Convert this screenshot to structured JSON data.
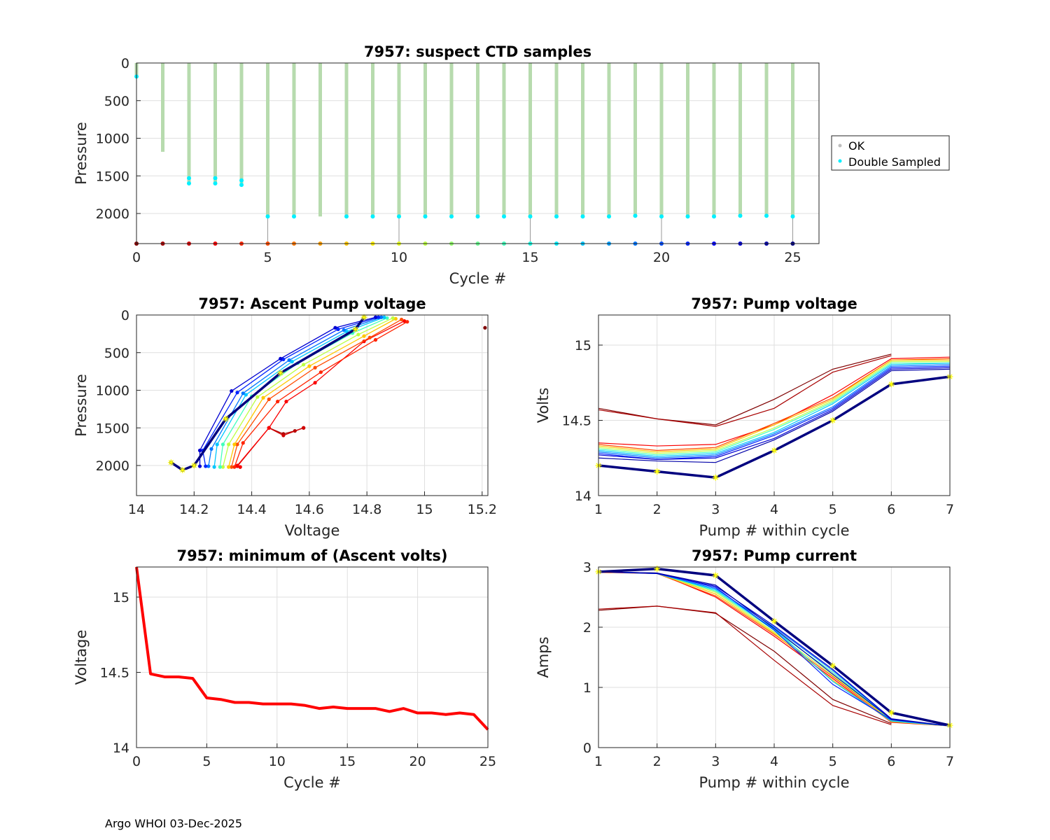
{
  "footer": "Argo WHOI 03-Dec-2025",
  "colors": {
    "ok": "#b7dbae",
    "double_sampled": "#00f0ff",
    "cycle_scale": [
      "#00007f",
      "#0000ff",
      "#007fff",
      "#00ffff",
      "#7fff7f",
      "#ffff00",
      "#ff7f00",
      "#ff0000",
      "#7f0000"
    ],
    "min_voltage": "#ff0000"
  },
  "chart_data": [
    {
      "id": "ctd",
      "type": "scatter",
      "title": "7957: suspect CTD samples",
      "xlabel": "Cycle #",
      "ylabel": "Pressure",
      "xlim": [
        0,
        26
      ],
      "ylim": [
        2400,
        0
      ],
      "xticks": [
        0,
        5,
        10,
        15,
        20,
        25
      ],
      "yticks": [
        0,
        500,
        1000,
        1500,
        2000
      ],
      "legend": {
        "location": "east-outside",
        "entries": [
          "OK",
          "Double Sampled"
        ]
      },
      "cycles": [
        0,
        1,
        2,
        3,
        4,
        5,
        6,
        7,
        8,
        9,
        10,
        11,
        12,
        13,
        14,
        15,
        16,
        17,
        18,
        19,
        20,
        21,
        22,
        23,
        24,
        25
      ],
      "max_pressure": [
        180,
        1180,
        1600,
        1600,
        1620,
        2040,
        2040,
        2040,
        2040,
        2040,
        2040,
        2040,
        2040,
        2040,
        2040,
        2040,
        2040,
        2040,
        2040,
        2030,
        2040,
        2040,
        2040,
        2030,
        2030,
        2040
      ],
      "double_sampled": [
        [
          0,
          180
        ],
        [
          2,
          1530
        ],
        [
          2,
          1600
        ],
        [
          3,
          1530
        ],
        [
          3,
          1600
        ],
        [
          4,
          1560
        ],
        [
          4,
          1620
        ],
        [
          5,
          2040
        ],
        [
          6,
          2040
        ],
        [
          8,
          2040
        ],
        [
          9,
          2040
        ],
        [
          10,
          2040
        ],
        [
          11,
          2040
        ],
        [
          12,
          2040
        ],
        [
          13,
          2040
        ],
        [
          14,
          2040
        ],
        [
          15,
          2040
        ],
        [
          16,
          2040
        ],
        [
          17,
          2040
        ],
        [
          18,
          2040
        ],
        [
          19,
          2030
        ],
        [
          20,
          2040
        ],
        [
          21,
          2040
        ],
        [
          22,
          2040
        ],
        [
          23,
          2030
        ],
        [
          24,
          2030
        ],
        [
          25,
          2040
        ]
      ],
      "stems": [
        5,
        10,
        15,
        20,
        25
      ],
      "stem_top": 2040,
      "baseline": 2400
    },
    {
      "id": "ascent",
      "type": "line",
      "title": "7957: Ascent Pump voltage",
      "xlabel": "Voltage",
      "ylabel": "Pressure",
      "xlim": [
        14,
        15.22
      ],
      "ylim": [
        2400,
        0
      ],
      "xticks": [
        14,
        14.2,
        14.4,
        14.6,
        14.8,
        15,
        15.2
      ],
      "yticks": [
        0,
        500,
        1000,
        1500,
        2000
      ],
      "series": [
        {
          "cycle": 0,
          "points": [
            [
              15.21,
              170
            ]
          ]
        },
        {
          "cycle": 1,
          "points": [
            [
              14.46,
              1500
            ],
            [
              14.51,
              1580
            ],
            [
              14.55,
              1540
            ],
            [
              14.58,
              1500
            ]
          ]
        },
        {
          "cycle": 2,
          "points": [
            [
              14.36,
              2020
            ],
            [
              14.35,
              2010
            ],
            [
              14.46,
              1500
            ],
            [
              14.51,
              1600
            ],
            [
              14.58,
              1500
            ]
          ]
        },
        {
          "cycle": 3,
          "points": [
            [
              14.36,
              2020
            ],
            [
              14.35,
              2000
            ],
            [
              14.46,
              1500
            ],
            [
              14.52,
              1150
            ],
            [
              14.62,
              900
            ],
            [
              14.79,
              350
            ],
            [
              14.93,
              80
            ]
          ]
        },
        {
          "cycle": 4,
          "points": [
            [
              14.34,
              2020
            ],
            [
              14.37,
              1700
            ],
            [
              14.49,
              1150
            ],
            [
              14.64,
              760
            ],
            [
              14.83,
              330
            ],
            [
              14.94,
              90
            ]
          ]
        },
        {
          "cycle": 5,
          "points": [
            [
              14.33,
              2020
            ],
            [
              14.35,
              1720
            ],
            [
              14.46,
              1120
            ],
            [
              14.62,
              700
            ],
            [
              14.81,
              300
            ],
            [
              14.92,
              60
            ]
          ]
        },
        {
          "cycle": 8,
          "points": [
            [
              14.32,
              2020
            ],
            [
              14.34,
              1720
            ],
            [
              14.44,
              1100
            ],
            [
              14.6,
              680
            ],
            [
              14.79,
              280
            ],
            [
              14.9,
              50
            ]
          ]
        },
        {
          "cycle": 11,
          "points": [
            [
              14.3,
              2020
            ],
            [
              14.32,
              1720
            ],
            [
              14.42,
              1090
            ],
            [
              14.58,
              660
            ],
            [
              14.77,
              260
            ],
            [
              14.89,
              40
            ]
          ]
        },
        {
          "cycle": 14,
          "points": [
            [
              14.29,
              2020
            ],
            [
              14.3,
              1720
            ],
            [
              14.4,
              1080
            ],
            [
              14.56,
              640
            ],
            [
              14.75,
              240
            ],
            [
              14.87,
              40
            ]
          ]
        },
        {
          "cycle": 17,
          "points": [
            [
              14.27,
              2020
            ],
            [
              14.28,
              1720
            ],
            [
              14.38,
              1060
            ],
            [
              14.54,
              620
            ],
            [
              14.73,
              220
            ],
            [
              14.86,
              30
            ]
          ]
        },
        {
          "cycle": 19,
          "points": [
            [
              14.25,
              2010
            ],
            [
              14.26,
              1780
            ],
            [
              14.37,
              1040
            ],
            [
              14.53,
              600
            ],
            [
              14.72,
              200
            ],
            [
              14.85,
              30
            ]
          ]
        },
        {
          "cycle": 21,
          "points": [
            [
              14.24,
              2010
            ],
            [
              14.23,
              1800
            ],
            [
              14.35,
              1030
            ],
            [
              14.51,
              590
            ],
            [
              14.7,
              190
            ],
            [
              14.84,
              30
            ]
          ]
        },
        {
          "cycle": 23,
          "points": [
            [
              14.22,
              2010
            ],
            [
              14.22,
              1800
            ],
            [
              14.33,
              1010
            ],
            [
              14.5,
              580
            ],
            [
              14.69,
              170
            ],
            [
              14.83,
              30
            ]
          ]
        },
        {
          "cycle": 25,
          "points": [
            [
              14.12,
              1960
            ],
            [
              14.16,
              2060
            ],
            [
              14.2,
              2000
            ],
            [
              14.31,
              1380
            ],
            [
              14.5,
              770
            ],
            [
              14.76,
              190
            ],
            [
              14.79,
              30
            ]
          ]
        }
      ]
    },
    {
      "id": "pump_voltage",
      "type": "line",
      "title": "7957: Pump voltage",
      "xlabel": "Pump # within cycle",
      "ylabel": "Volts",
      "xlim": [
        1,
        7
      ],
      "ylim": [
        14,
        15.2
      ],
      "xticks": [
        1,
        2,
        3,
        4,
        5,
        6,
        7
      ],
      "yticks": [
        14,
        14.5,
        15
      ],
      "series": [
        {
          "cycle": 0,
          "values": [
            14.58,
            14.51,
            14.47,
            14.64,
            14.84,
            14.94,
            null
          ]
        },
        {
          "cycle": 1,
          "values": [
            14.57,
            14.51,
            14.46,
            14.58,
            14.82,
            14.93,
            null
          ]
        },
        {
          "cycle": 3,
          "values": [
            14.35,
            14.33,
            14.34,
            14.47,
            14.67,
            14.91,
            14.92
          ]
        },
        {
          "cycle": 5,
          "values": [
            14.34,
            14.3,
            14.32,
            14.48,
            14.65,
            14.9,
            14.91
          ]
        },
        {
          "cycle": 8,
          "values": [
            14.33,
            14.29,
            14.31,
            14.47,
            14.64,
            14.9,
            14.9
          ]
        },
        {
          "cycle": 11,
          "values": [
            14.32,
            14.28,
            14.3,
            14.45,
            14.63,
            14.89,
            14.89
          ]
        },
        {
          "cycle": 14,
          "values": [
            14.31,
            14.27,
            14.29,
            14.44,
            14.62,
            14.88,
            14.88
          ]
        },
        {
          "cycle": 17,
          "values": [
            14.3,
            14.26,
            14.28,
            14.42,
            14.61,
            14.87,
            14.88
          ]
        },
        {
          "cycle": 19,
          "values": [
            14.29,
            14.25,
            14.27,
            14.41,
            14.59,
            14.86,
            14.87
          ]
        },
        {
          "cycle": 21,
          "values": [
            14.28,
            14.24,
            14.26,
            14.4,
            14.58,
            14.85,
            14.86
          ]
        },
        {
          "cycle": 23,
          "values": [
            14.27,
            14.24,
            14.25,
            14.38,
            14.57,
            14.84,
            14.85
          ]
        },
        {
          "cycle": 24,
          "values": [
            14.25,
            14.23,
            14.22,
            14.37,
            14.56,
            14.83,
            14.84
          ]
        },
        {
          "cycle": 25,
          "values": [
            14.2,
            14.16,
            14.12,
            14.3,
            14.5,
            14.74,
            14.79
          ]
        }
      ]
    },
    {
      "id": "min_volts",
      "type": "line",
      "title": "7957: minimum of (Ascent volts)",
      "xlabel": "Cycle #",
      "ylabel": "Voltage",
      "xlim": [
        0,
        25
      ],
      "ylim": [
        14,
        15.2
      ],
      "xticks": [
        0,
        5,
        10,
        15,
        20,
        25
      ],
      "yticks": [
        14,
        14.5,
        15
      ],
      "x": [
        0,
        1,
        2,
        3,
        4,
        5,
        6,
        7,
        8,
        9,
        10,
        11,
        12,
        13,
        14,
        15,
        16,
        17,
        18,
        19,
        20,
        21,
        22,
        23,
        24,
        25
      ],
      "values": [
        15.2,
        14.49,
        14.47,
        14.47,
        14.46,
        14.33,
        14.32,
        14.3,
        14.3,
        14.29,
        14.29,
        14.29,
        14.28,
        14.26,
        14.27,
        14.26,
        14.26,
        14.26,
        14.24,
        14.26,
        14.23,
        14.23,
        14.22,
        14.23,
        14.22,
        14.12
      ]
    },
    {
      "id": "pump_current",
      "type": "line",
      "title": "7957: Pump current",
      "xlabel": "Pump # within cycle",
      "ylabel": "Amps",
      "xlim": [
        1,
        7
      ],
      "ylim": [
        0,
        3
      ],
      "xticks": [
        1,
        2,
        3,
        4,
        5,
        6,
        7
      ],
      "yticks": [
        0,
        1,
        2,
        3
      ],
      "series": [
        {
          "cycle": 0,
          "values": [
            2.28,
            2.35,
            2.23,
            1.6,
            0.8,
            0.4,
            null
          ]
        },
        {
          "cycle": 1,
          "values": [
            2.3,
            2.35,
            2.24,
            1.45,
            0.7,
            0.38,
            null
          ]
        },
        {
          "cycle": 3,
          "values": [
            2.92,
            2.9,
            2.5,
            1.85,
            1.15,
            0.42,
            0.36
          ]
        },
        {
          "cycle": 5,
          "values": [
            2.91,
            2.89,
            2.52,
            1.88,
            1.18,
            0.44,
            0.36
          ]
        },
        {
          "cycle": 8,
          "values": [
            2.92,
            2.9,
            2.55,
            1.9,
            1.12,
            0.43,
            0.36
          ]
        },
        {
          "cycle": 11,
          "values": [
            2.92,
            2.89,
            2.58,
            1.92,
            1.2,
            0.45,
            0.36
          ]
        },
        {
          "cycle": 14,
          "values": [
            2.92,
            2.9,
            2.6,
            1.95,
            1.25,
            0.46,
            0.36
          ]
        },
        {
          "cycle": 17,
          "values": [
            2.92,
            2.89,
            2.62,
            1.97,
            1.1,
            0.44,
            0.36
          ]
        },
        {
          "cycle": 19,
          "values": [
            2.92,
            2.89,
            2.64,
            2.0,
            1.28,
            0.47,
            0.36
          ]
        },
        {
          "cycle": 21,
          "values": [
            2.92,
            2.9,
            2.66,
            1.95,
            1.05,
            0.46,
            0.36
          ]
        },
        {
          "cycle": 23,
          "values": [
            2.92,
            2.89,
            2.68,
            2.02,
            1.3,
            0.48,
            0.36
          ]
        },
        {
          "cycle": 24,
          "values": [
            2.92,
            2.9,
            2.7,
            1.98,
            1.22,
            0.47,
            0.36
          ]
        },
        {
          "cycle": 25,
          "values": [
            2.92,
            2.97,
            2.86,
            2.1,
            1.36,
            0.58,
            0.37
          ]
        }
      ]
    }
  ]
}
